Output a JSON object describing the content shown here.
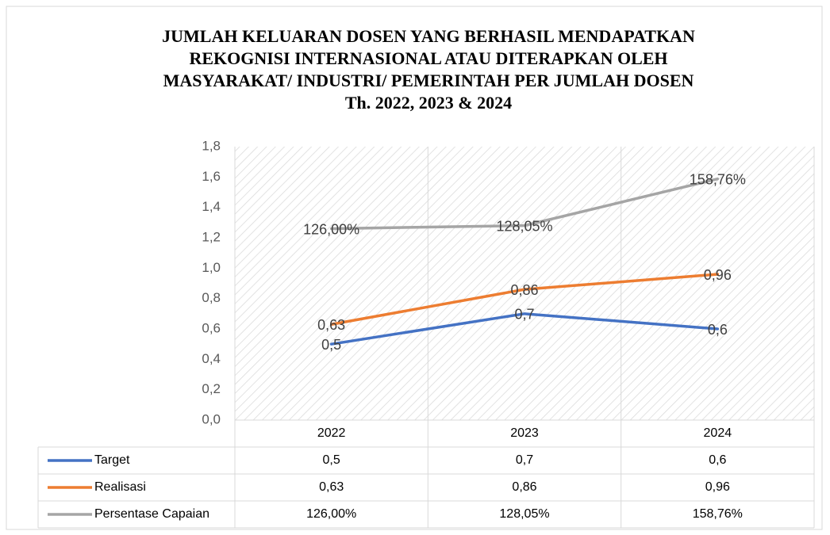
{
  "chart_data": {
    "type": "line",
    "title": [
      "JUMLAH KELUARAN DOSEN YANG BERHASIL MENDAPATKAN",
      "REKOGNISI INTERNASIONAL ATAU DITERAPKAN OLEH",
      "MASYARAKAT/ INDUSTRI/ PEMERINTAH PER JUMLAH DOSEN",
      "Th. 2022, 2023 & 2024"
    ],
    "categories": [
      "2022",
      "2023",
      "2024"
    ],
    "series": [
      {
        "name": "Target",
        "color": "#4472c4",
        "values": [
          0.5,
          0.7,
          0.6
        ],
        "value_labels": [
          "0,5",
          "0,7",
          "0,6"
        ]
      },
      {
        "name": "Realisasi",
        "color": "#ed7d31",
        "values": [
          0.63,
          0.86,
          0.96
        ],
        "value_labels": [
          "0,63",
          "0,86",
          "0,96"
        ]
      },
      {
        "name": "Persentase Capaian",
        "color": "#a5a5a5",
        "values": [
          1.26,
          1.2805,
          1.5876
        ],
        "value_labels": [
          "126,00%",
          "128,05%",
          "158,76%"
        ]
      }
    ],
    "ylim": [
      0,
      1.8
    ],
    "yticks": [
      {
        "value": 0,
        "label": "0,0"
      },
      {
        "value": 0.2,
        "label": "0,2"
      },
      {
        "value": 0.4,
        "label": "0,4"
      },
      {
        "value": 0.6,
        "label": "0,6"
      },
      {
        "value": 0.8,
        "label": "0,8"
      },
      {
        "value": 1.0,
        "label": "1,0"
      },
      {
        "value": 1.2,
        "label": "1,2"
      },
      {
        "value": 1.4,
        "label": "1,4"
      },
      {
        "value": 1.6,
        "label": "1,6"
      },
      {
        "value": 1.8,
        "label": "1,8"
      }
    ],
    "data_table": true
  }
}
